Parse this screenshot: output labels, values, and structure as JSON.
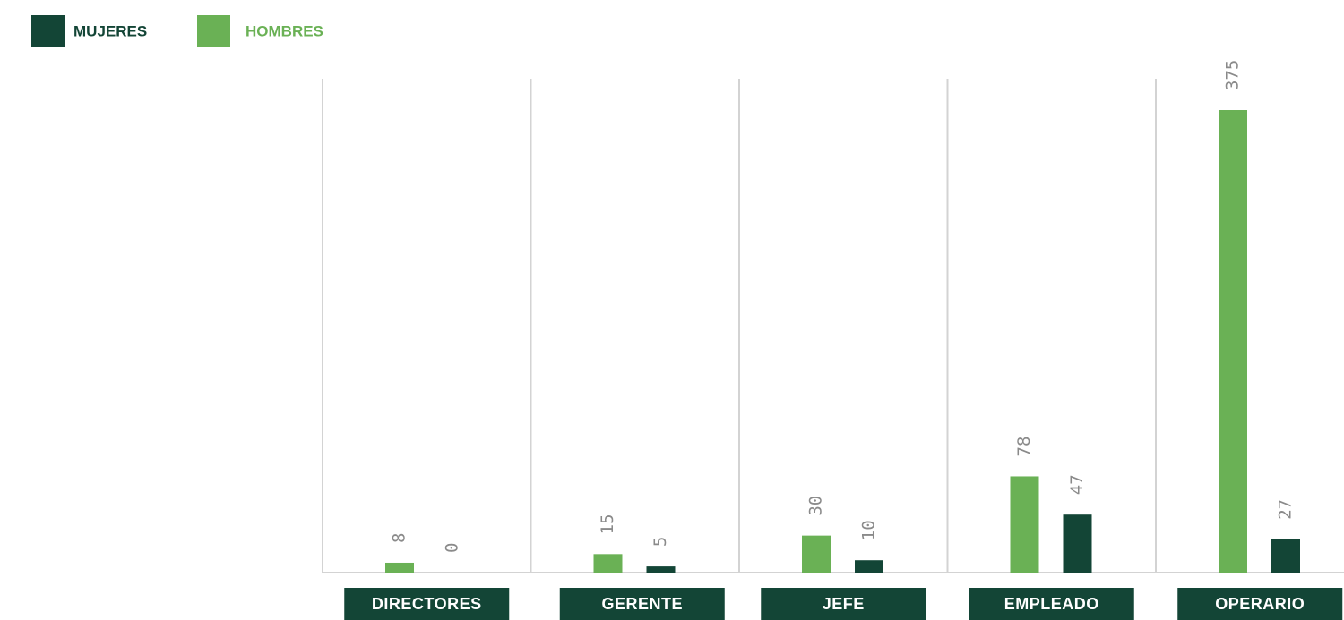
{
  "chart_data": {
    "type": "bar",
    "categories": [
      "DIRECTORES",
      "GERENTE",
      "JEFE",
      "EMPLEADO",
      "OPERARIO"
    ],
    "series": [
      {
        "name": "MUJERES",
        "color": "#134536",
        "values": [
          0,
          5,
          10,
          47,
          27
        ]
      },
      {
        "name": "HOMBRES",
        "color": "#6ab155",
        "values": [
          8,
          15,
          30,
          78,
          375
        ]
      }
    ]
  }
}
